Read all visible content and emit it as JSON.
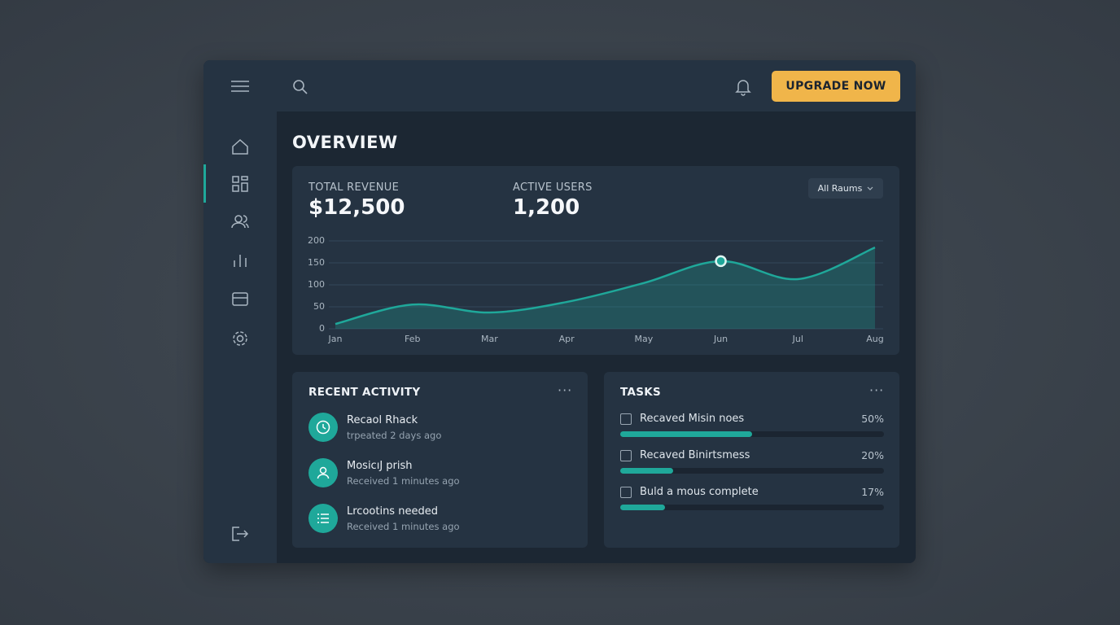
{
  "header": {
    "button": "UPGRADE NOW"
  },
  "overview": {
    "title": "OVERVIEW",
    "stats": [
      {
        "label": "TOTAL REVENUE",
        "value": "$12,500"
      },
      {
        "label": "ACTIVE USERS",
        "value": "1,200"
      }
    ],
    "filter": "All Raums"
  },
  "chart_data": {
    "type": "area",
    "categories": [
      "Jan",
      "Feb",
      "Mar",
      "Apr",
      "May",
      "Jun",
      "Jul",
      "Aug"
    ],
    "values": [
      11,
      55,
      37,
      61,
      104,
      154,
      113,
      185
    ],
    "ylim": [
      0,
      200
    ],
    "yticks": [
      0,
      50,
      100,
      150,
      200
    ],
    "grid": true,
    "color": "#1fa89a",
    "highlight": "Jun"
  },
  "activity": {
    "title": "RECENT ACTIVITY",
    "items": [
      {
        "title": "Recaol Rhack",
        "subtitle": "trpeated 2 days ago"
      },
      {
        "title": "MosicıJ prish",
        "subtitle": "Received 1 minutes ago"
      },
      {
        "title": "Lrcootins needed",
        "subtitle": "Received 1 minutes ago"
      }
    ]
  },
  "tasks": {
    "title": "TASKS",
    "items": [
      {
        "label": "Recaved Misin noes",
        "progress": 50,
        "progress_label": "50%"
      },
      {
        "label": "Recaved Binirtsmess",
        "progress": 20,
        "progress_label": "20%"
      },
      {
        "label": "Buld a mous complete",
        "progress": 17,
        "progress_label": "17%"
      }
    ]
  }
}
